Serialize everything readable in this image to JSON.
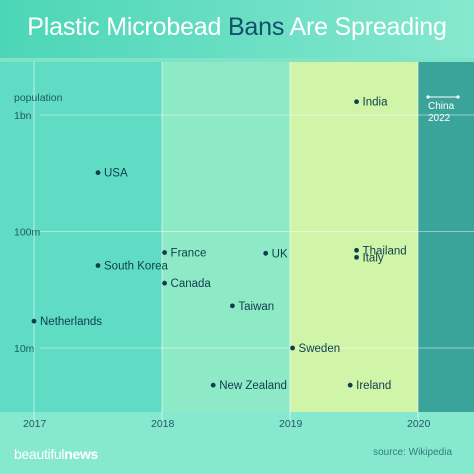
{
  "title": {
    "part1": "Plastic Microbead ",
    "highlight": "Bans",
    "part2": " Are Spreading"
  },
  "brand": {
    "part1": "beautiful",
    "part2": "news"
  },
  "source": "source: Wikipedia",
  "chart_data": {
    "type": "scatter",
    "ylabel": "population",
    "yscale": "log",
    "ylim": [
      2000000,
      2000000000
    ],
    "xlim": [
      2017.0,
      2020.45
    ],
    "x_ticks": [
      2017,
      2018,
      2019,
      2020
    ],
    "y_ticks": [
      {
        "value": 1000000000,
        "label": "1bn"
      },
      {
        "value": 100000000,
        "label": "100m"
      },
      {
        "value": 10000000,
        "label": "10m"
      }
    ],
    "grid": true,
    "points": [
      {
        "label": "India",
        "x": 2019.52,
        "y": 1300000000
      },
      {
        "label": "USA",
        "x": 2017.5,
        "y": 320000000
      },
      {
        "label": "France",
        "x": 2018.02,
        "y": 66000000
      },
      {
        "label": "UK",
        "x": 2018.81,
        "y": 65000000
      },
      {
        "label": "Thailand",
        "x": 2019.52,
        "y": 69000000
      },
      {
        "label": "Italy",
        "x": 2019.52,
        "y": 60000000
      },
      {
        "label": "South Korea",
        "x": 2017.5,
        "y": 51000000
      },
      {
        "label": "Canada",
        "x": 2018.02,
        "y": 36000000
      },
      {
        "label": "Taiwan",
        "x": 2018.55,
        "y": 23000000
      },
      {
        "label": "Netherlands",
        "x": 2017.0,
        "y": 17000000
      },
      {
        "label": "Sweden",
        "x": 2019.02,
        "y": 10000000
      },
      {
        "label": "New Zealand",
        "x": 2018.4,
        "y": 4800000
      },
      {
        "label": "Ireland",
        "x": 2019.47,
        "y": 4800000
      }
    ],
    "future_bans": [
      {
        "label": "China",
        "year": "2022"
      }
    ],
    "colors": {
      "band_2017": "#5fdcc3",
      "band_2018": "#8eeac6",
      "band_2019": "#d0f5a8",
      "band_future": "#3aa39a",
      "dot": "#0e3d4e",
      "text": "#0e3d4e"
    }
  }
}
